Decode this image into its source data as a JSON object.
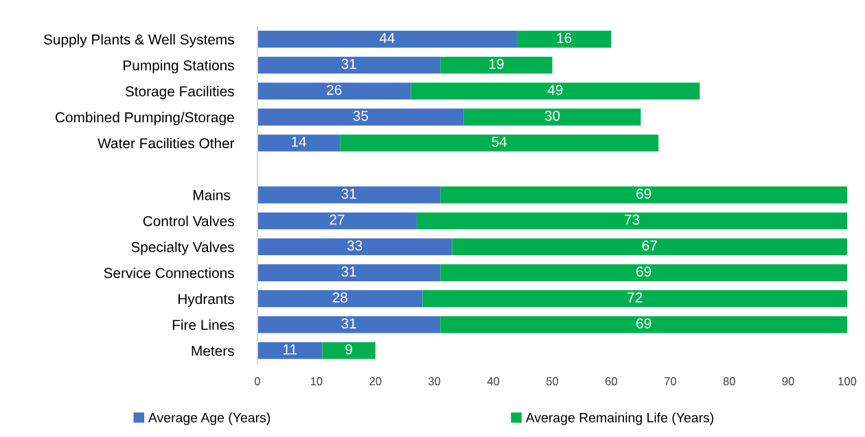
{
  "chart_data": {
    "type": "bar",
    "orientation": "horizontal",
    "stacked": true,
    "categories": [
      "Supply Plants & Well Systems",
      "Pumping Stations",
      "Storage Facilities",
      "Combined Pumping/Storage",
      "Water Facilities Other",
      null,
      "Mains ",
      "Control Valves",
      "Specialty Valves",
      "Service Connections",
      "Hydrants",
      "Fire Lines",
      "Meters"
    ],
    "series": [
      {
        "name": "Average Age (Years)",
        "color": "#4472c4",
        "values": [
          44,
          31,
          26,
          35,
          14,
          null,
          31,
          27,
          33,
          31,
          28,
          31,
          11
        ]
      },
      {
        "name": "Average Remaining Life (Years)",
        "color": "#00b050",
        "values": [
          16,
          19,
          49,
          30,
          54,
          null,
          69,
          73,
          67,
          69,
          72,
          69,
          9
        ]
      }
    ],
    "xlim": [
      0,
      100
    ],
    "xticks": [
      0,
      10,
      20,
      30,
      40,
      50,
      60,
      70,
      80,
      90,
      100
    ],
    "data_labels": true,
    "grid": false,
    "legend": "bottom"
  }
}
